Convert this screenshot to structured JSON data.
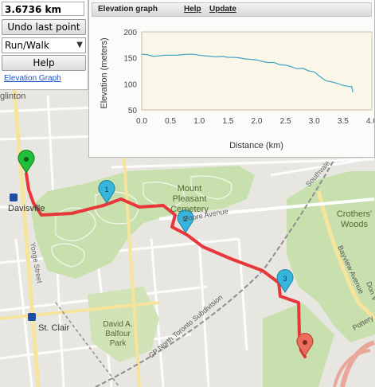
{
  "controls": {
    "distance": "3.6736 km",
    "undo_label": "Undo last point",
    "mode_value": "Run/Walk",
    "help_label": "Help",
    "elevation_link": "Elevation Graph"
  },
  "elevation_panel": {
    "title": "Elevation graph",
    "help_link": "Help",
    "update_link": "Update"
  },
  "map_labels": {
    "eglinton": "glinton",
    "davisville": "Davisville",
    "yonge": "Yonge Street",
    "mount_pleasant_1": "Mount",
    "mount_pleasant_2": "Pleasant",
    "mount_pleasant_3": "Cemetery",
    "moore": "Moore Avenue",
    "southvale": "Southvale",
    "crothers_1": "Crothers'",
    "crothers_2": "Woods",
    "bayview": "Bayview Avenue",
    "st_clair": "St. Clair",
    "balfour_1": "David A.",
    "balfour_2": "Balfour",
    "balfour_3": "Park",
    "subdivision": "CP North Toronto Subdivision",
    "pottery": "Pottery",
    "don_valley": "Don V"
  },
  "markers": [
    "1",
    "2",
    "3"
  ],
  "colors": {
    "route": "#e8373a",
    "start_marker": "#1fbf3a",
    "waypoint_marker": "#36b6dc",
    "end_marker": "#ee6e5e",
    "elevation_line": "#4aa8c8",
    "park": "#c8dfae",
    "road_major": "#f6e49c",
    "railway": "#8e8e8e"
  },
  "chart_data": {
    "type": "line",
    "title": "",
    "xlabel": "Distance (km)",
    "ylabel": "Elevation (meters)",
    "xlim": [
      0,
      4.0
    ],
    "ylim": [
      50,
      200
    ],
    "xticks": [
      "0.0",
      "0.5",
      "1.0",
      "1.5",
      "2.0",
      "2.5",
      "3.0",
      "3.5",
      "4.0"
    ],
    "yticks": [
      "50",
      "100",
      "150",
      "200"
    ],
    "grid": false,
    "series": [
      {
        "x": [
          0,
          0.1,
          0.2,
          0.3,
          0.4,
          0.5,
          0.6,
          0.7,
          0.8,
          0.9,
          1.0,
          1.1,
          1.2,
          1.3,
          1.4,
          1.5,
          1.6,
          1.7,
          1.8,
          1.9,
          2.0,
          2.1,
          2.2,
          2.3,
          2.4,
          2.5,
          2.6,
          2.7,
          2.8,
          2.9,
          3.0,
          3.1,
          3.2,
          3.3,
          3.4,
          3.5,
          3.6,
          3.65,
          3.67
        ],
        "y": [
          157,
          156,
          153,
          154,
          155,
          155,
          155,
          156,
          157,
          157,
          155,
          154,
          153,
          152,
          153,
          151,
          151,
          150,
          148,
          147,
          146,
          143,
          141,
          141,
          137,
          136,
          133,
          129,
          130,
          125,
          123,
          114,
          106,
          104,
          101,
          97,
          95,
          95,
          84
        ]
      }
    ]
  }
}
